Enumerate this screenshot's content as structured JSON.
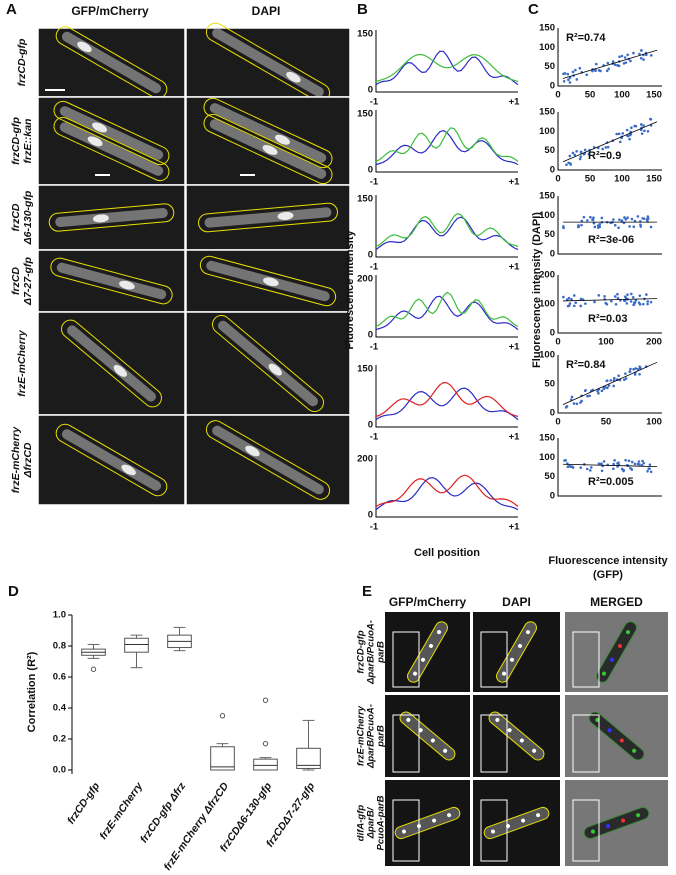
{
  "panels": {
    "a": {
      "letter": "A",
      "headers": [
        "GFP/mCherry",
        "DAPI"
      ],
      "rows": [
        [
          "frzCD-gfp"
        ],
        [
          "frzCD-gfp",
          "frzE::kan"
        ],
        [
          "frzCD",
          "Δ6-130-gfp"
        ],
        [
          "frzCD",
          "Δ7-27-gfp"
        ],
        [
          "frzE-mCherry"
        ],
        [
          "frzE-mCherry",
          "ΔfrzCD"
        ]
      ]
    },
    "b": {
      "letter": "B",
      "ylabel": "Fluorescence intensity",
      "xlabel": "Cell position",
      "plots": [
        {
          "ytop": "150",
          "ybottom": "0",
          "xleft": "-1",
          "xright": "+1"
        },
        {
          "ytop": "150",
          "ybottom": "0",
          "xleft": "-1",
          "xright": "+1"
        },
        {
          "ytop": "150",
          "ybottom": "0",
          "xleft": "-1",
          "xright": "+1"
        },
        {
          "ytop": "200",
          "ybottom": "0",
          "xleft": "-1",
          "xright": "+1"
        },
        {
          "ytop": "150",
          "ybottom": "0",
          "xleft": "-1",
          "xright": "+1"
        },
        {
          "ytop": "200",
          "ybottom": "0",
          "xleft": "-1",
          "xright": "+1"
        }
      ]
    },
    "c": {
      "letter": "C",
      "ylabel": "Fluorescence intensity (DAPI)",
      "xlabel": [
        "Fluorescence intensity",
        "(GFP)"
      ],
      "plots": [
        {
          "yticks": [
            "150",
            "100",
            "50",
            "0"
          ],
          "xticks": [
            "0",
            "50",
            "100",
            "150"
          ],
          "r2": "R²=0.74"
        },
        {
          "yticks": [
            "150",
            "100",
            "50",
            "0"
          ],
          "xticks": [
            "0",
            "50",
            "100",
            "150"
          ],
          "r2": "R²=0.9"
        },
        {
          "yticks": [
            "150",
            "100",
            "50",
            "0"
          ],
          "xticks": [],
          "r2": "R²=3e-06"
        },
        {
          "yticks": [
            "200",
            "100",
            "0"
          ],
          "xticks": [
            "0",
            "100",
            "200"
          ],
          "r2": "R²=0.03"
        },
        {
          "yticks": [
            "100",
            "50",
            "0"
          ],
          "xticks": [
            "0",
            "50",
            "100"
          ],
          "r2": "R²=0.84"
        },
        {
          "yticks": [
            "150",
            "100",
            "50",
            "0"
          ],
          "xticks": [],
          "r2": "R²=0.005"
        }
      ]
    },
    "d": {
      "letter": "D",
      "ylabel": "Correlation (R²)",
      "ylim": [
        0,
        1
      ],
      "yticks": [
        {
          "value": 0,
          "label": "0.0"
        },
        {
          "value": 0.2,
          "label": "0.2"
        },
        {
          "value": 0.4,
          "label": "0.4"
        },
        {
          "value": 0.6,
          "label": "0.6"
        },
        {
          "value": 0.8,
          "label": "0.8"
        },
        {
          "value": 1,
          "label": "1.0"
        }
      ],
      "categories": [
        "frzCD-gfp",
        "frzE-mCherry",
        "frzCD-gfp Δfrz",
        "frzE-mCherry ΔfrzCD",
        "frzCDΔ6-130-gfp",
        "frzCDΔ7-27-gfp"
      ],
      "boxes": [
        {
          "min": 0.72,
          "q1": 0.74,
          "median": 0.76,
          "q3": 0.78,
          "max": 0.81,
          "outliers": [
            0.65
          ]
        },
        {
          "min": 0.66,
          "q1": 0.76,
          "median": 0.81,
          "q3": 0.85,
          "max": 0.87,
          "outliers": []
        },
        {
          "min": 0.77,
          "q1": 0.79,
          "median": 0.83,
          "q3": 0.87,
          "max": 0.92,
          "outliers": []
        },
        {
          "min": 0,
          "q1": 0,
          "median": 0.02,
          "q3": 0.15,
          "max": 0.17,
          "outliers": [
            0.35
          ]
        },
        {
          "min": 0,
          "q1": 0,
          "median": 0.03,
          "q3": 0.07,
          "max": 0.08,
          "outliers": [
            0.45,
            0.17
          ]
        },
        {
          "min": 0,
          "q1": 0.01,
          "median": 0.03,
          "q3": 0.14,
          "max": 0.32,
          "outliers": []
        }
      ]
    },
    "e": {
      "letter": "E",
      "headers": [
        "GFP/mCherry",
        "DAPI",
        "MERGED"
      ],
      "rows": [
        [
          "frzCD-gfp",
          "ΔparB/PcuoA-",
          "parB"
        ],
        [
          "frzE-mCherry",
          "ΔparB/PcuoA-",
          "parB"
        ],
        [
          "difA-gfp",
          "ΔparB/",
          "PcuoA-parB"
        ]
      ]
    }
  }
}
